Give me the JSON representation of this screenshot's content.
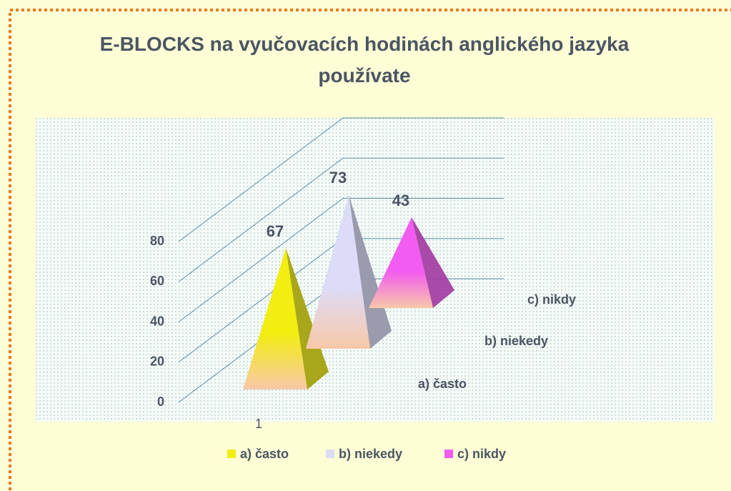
{
  "chart_data": {
    "type": "pyramid",
    "title": "E-BLOCKS na vyučovacích hodinách anglického jazyka používate",
    "categories": [
      "1"
    ],
    "series": [
      {
        "name": "a) často",
        "color": "#f2ee10",
        "values": [
          67
        ]
      },
      {
        "name": "b) niekedy",
        "color": "#dcdcf8",
        "values": [
          73
        ]
      },
      {
        "name": "c) nikdy",
        "color": "#f25cf0",
        "values": [
          43
        ]
      }
    ],
    "ylim": [
      0,
      80
    ],
    "yticks": [
      0,
      20,
      40,
      60,
      80
    ],
    "grid": true,
    "legend": "bottom"
  }
}
